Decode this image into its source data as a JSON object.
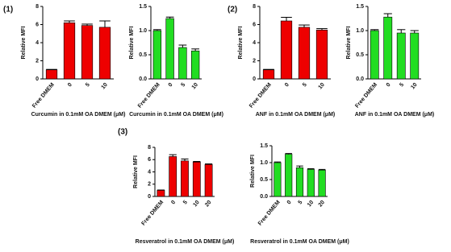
{
  "chart_data": [
    {
      "type": "bar",
      "panel": "(1)",
      "categories": [
        "Free DMEM",
        "0",
        "5",
        "10"
      ],
      "values": [
        1.0,
        6.2,
        5.9,
        5.7
      ],
      "errors": [
        0.05,
        0.2,
        0.15,
        0.7
      ],
      "color": "#ee0000",
      "ylim": [
        0,
        8
      ],
      "yticks": [
        0,
        2,
        4,
        6,
        8
      ],
      "y_label": "Relative MFI",
      "x_label": "Curcumin in 0.1mM OA DMEM (μM)"
    },
    {
      "type": "bar",
      "categories": [
        "Free DMEM",
        "0",
        "5",
        "10"
      ],
      "values": [
        1.0,
        1.25,
        0.65,
        0.58
      ],
      "errors": [
        0.02,
        0.03,
        0.05,
        0.04
      ],
      "color": "#22dd22",
      "ylim": [
        0,
        1.5
      ],
      "yticks": [
        {
          "value": 0,
          "label": "0.0"
        },
        {
          "value": 0.5,
          "label": "0.5"
        },
        {
          "value": 1,
          "label": "1.0"
        },
        {
          "value": 1.5,
          "label": "1.5"
        }
      ],
      "y_label": "Relative MFI",
      "x_label": "Curcumin in 0.1mM OA DMEM (μM)"
    },
    {
      "type": "bar",
      "panel": "(2)",
      "categories": [
        "Free DMEM",
        "0",
        "5",
        "10"
      ],
      "values": [
        1.0,
        6.4,
        5.7,
        5.4
      ],
      "errors": [
        0.05,
        0.4,
        0.25,
        0.15
      ],
      "color": "#ee0000",
      "ylim": [
        0,
        8
      ],
      "yticks": [
        0,
        2,
        4,
        6,
        8
      ],
      "y_label": "Relative MFI",
      "x_label": "ANF in 0.1mM OA DMEM (μM)"
    },
    {
      "type": "bar",
      "categories": [
        "Free DMEM",
        "0",
        "5",
        "10"
      ],
      "values": [
        1.0,
        1.28,
        0.95,
        0.95
      ],
      "errors": [
        0.02,
        0.07,
        0.07,
        0.05
      ],
      "color": "#22dd22",
      "ylim": [
        0,
        1.5
      ],
      "yticks": [
        {
          "value": 0,
          "label": "0.0"
        },
        {
          "value": 0.5,
          "label": "0.5"
        },
        {
          "value": 1,
          "label": "1.0"
        },
        {
          "value": 1.5,
          "label": "1.5"
        }
      ],
      "y_label": "Relative MFI",
      "x_label": "ANF in 0.1mM OA DMEM (μM)"
    },
    {
      "type": "bar",
      "panel": "(3)",
      "categories": [
        "Free DMEM",
        "0",
        "5",
        "10",
        "20"
      ],
      "values": [
        1.0,
        6.5,
        5.8,
        5.6,
        5.2
      ],
      "errors": [
        0.05,
        0.3,
        0.3,
        0.1,
        0.1
      ],
      "color": "#ee0000",
      "ylim": [
        0,
        8
      ],
      "yticks": [
        0,
        2,
        4,
        6,
        8
      ],
      "y_label": "Relative MFI",
      "x_label": "Resveratrol in 0.1mM OA DMEM (μM)"
    },
    {
      "type": "bar",
      "categories": [
        "Free DMEM",
        "0",
        "5",
        "10",
        "20"
      ],
      "values": [
        1.0,
        1.25,
        0.85,
        0.8,
        0.78
      ],
      "errors": [
        0.02,
        0.02,
        0.05,
        0.02,
        0.02
      ],
      "color": "#22dd22",
      "ylim": [
        0,
        1.5
      ],
      "yticks": [
        {
          "value": 0,
          "label": "0.0"
        },
        {
          "value": 0.5,
          "label": "0.5"
        },
        {
          "value": 1,
          "label": "1.0"
        },
        {
          "value": 1.5,
          "label": "1.5"
        }
      ],
      "y_label": "Relative MFI",
      "x_label": "Resveratrol in 0.1mM OA DMEM (μM)"
    }
  ]
}
